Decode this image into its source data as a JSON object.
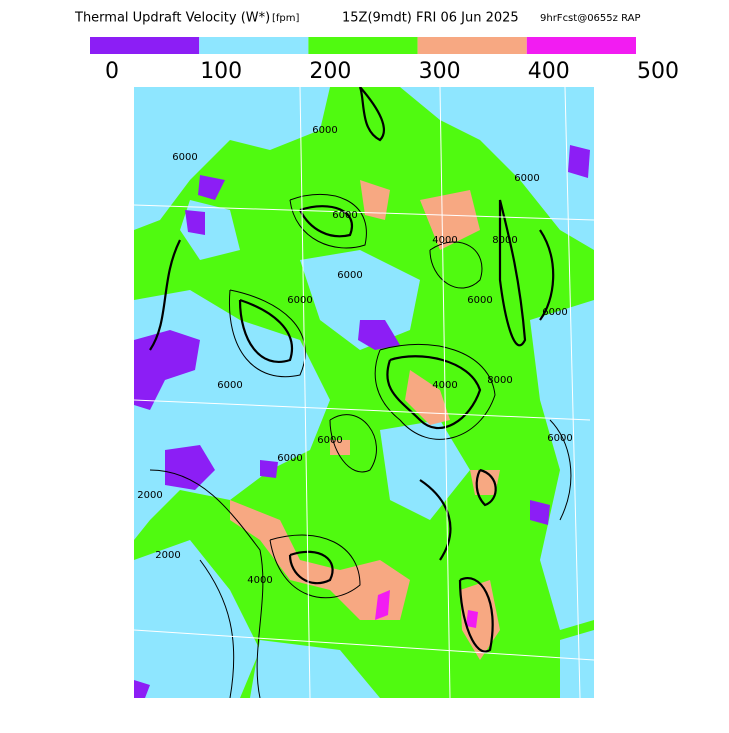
{
  "header": {
    "title": "Thermal Updraft Velocity (W*)",
    "units": "[fpm]",
    "valid": "15Z(9mdt) FRI 06 Jun 2025",
    "forecast": "9hrFcst@0655z RAP"
  },
  "legend": {
    "colors": [
      "#8c1ef5",
      "#8ee6ff",
      "#50fa10",
      "#f7a882",
      "#f21cf2"
    ],
    "ticks": [
      0,
      100,
      200,
      300,
      400,
      500
    ]
  },
  "map": {
    "contour_labels": [
      "6000",
      "6000",
      "6000",
      "6000",
      "6000",
      "6000",
      "8000",
      "8000",
      "6000",
      "6000",
      "4000",
      "2000",
      "2000",
      "4000",
      "6000",
      "6000",
      "4000",
      "6000",
      "6000"
    ]
  }
}
